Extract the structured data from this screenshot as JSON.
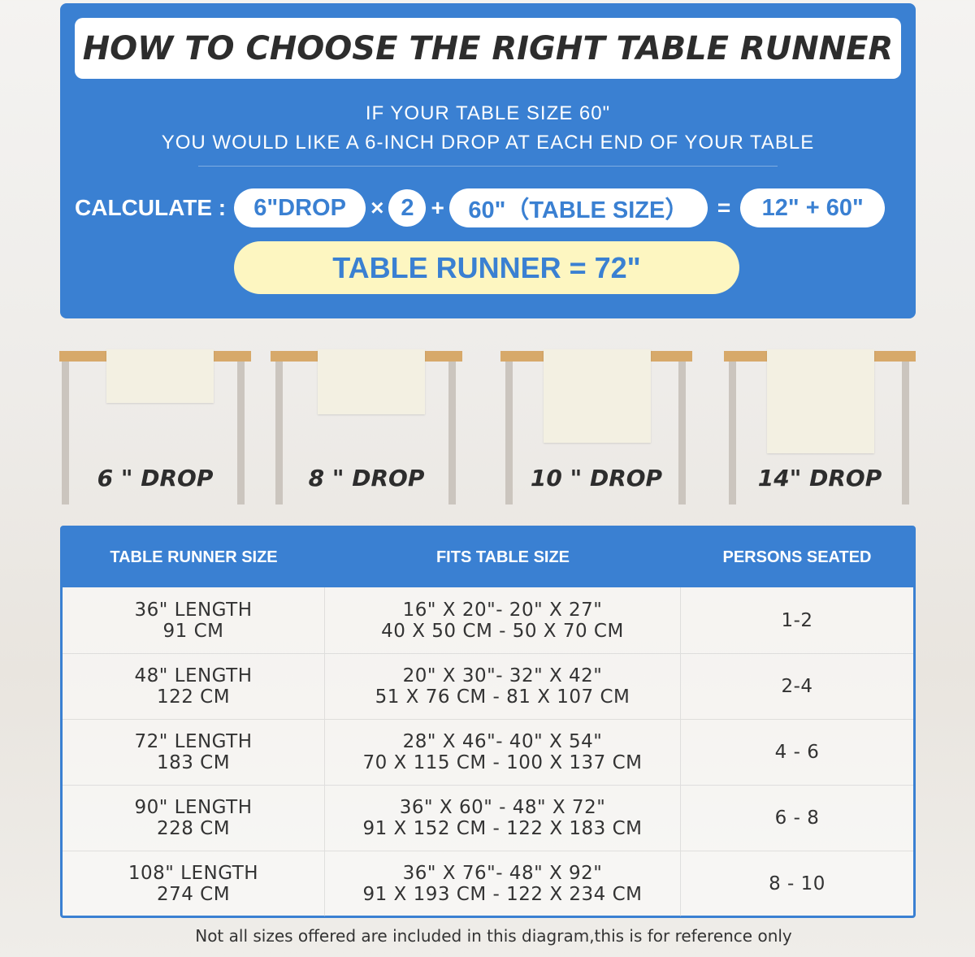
{
  "header": {
    "title": "HOW TO CHOOSE THE RIGHT TABLE RUNNER",
    "line1": "IF YOUR TABLE SIZE 60\"",
    "line2": "YOU WOULD LIKE A 6-INCH DROP AT EACH END OF YOUR TABLE"
  },
  "calc": {
    "label": "CALCULATE :",
    "drop": "6\"DROP",
    "times": "×",
    "two": "2",
    "plus": "+",
    "table": "60\"（TABLE SIZE）",
    "equals": "=",
    "sum": "12\" + 60\"",
    "result": "TABLE RUNNER = 72\""
  },
  "drops": [
    {
      "label": "6 \" DROP"
    },
    {
      "label": "8 \" DROP"
    },
    {
      "label": "10 \" DROP"
    },
    {
      "label": "14\" DROP"
    }
  ],
  "colors": {
    "accent": "#3a80d2",
    "highlight": "#fdf6c1",
    "tabletop": "#d7a96a"
  },
  "table": {
    "headers": [
      "TABLE RUNNER SIZE",
      "FITS TABLE SIZE",
      "PERSONS SEATED"
    ],
    "rows": [
      {
        "size1": "36\" LENGTH",
        "size2": "91 CM",
        "fit1": "16\" X 20\"- 20\" X 27\"",
        "fit2": "40 X 50 CM - 50 X 70 CM",
        "persons": "1-2"
      },
      {
        "size1": "48\" LENGTH",
        "size2": "122 CM",
        "fit1": "20\" X 30\"- 32\" X 42\"",
        "fit2": "51 X 76 CM - 81 X 107 CM",
        "persons": "2-4"
      },
      {
        "size1": "72\" LENGTH",
        "size2": "183 CM",
        "fit1": "28\" X 46\"- 40\" X 54\"",
        "fit2": "70 X 115 CM - 100 X 137 CM",
        "persons": "4 - 6"
      },
      {
        "size1": "90\" LENGTH",
        "size2": "228 CM",
        "fit1": "36\" X 60\" - 48\" X 72\"",
        "fit2": "91 X 152 CM - 122 X 183 CM",
        "persons": "6 - 8"
      },
      {
        "size1": "108\" LENGTH",
        "size2": "274 CM",
        "fit1": "36\" X 76\"- 48\" X 92\"",
        "fit2": "91 X 193 CM - 122 X 234 CM",
        "persons": "8 - 10"
      }
    ]
  },
  "note": "Not all sizes offered are included in this diagram,this is for reference only"
}
